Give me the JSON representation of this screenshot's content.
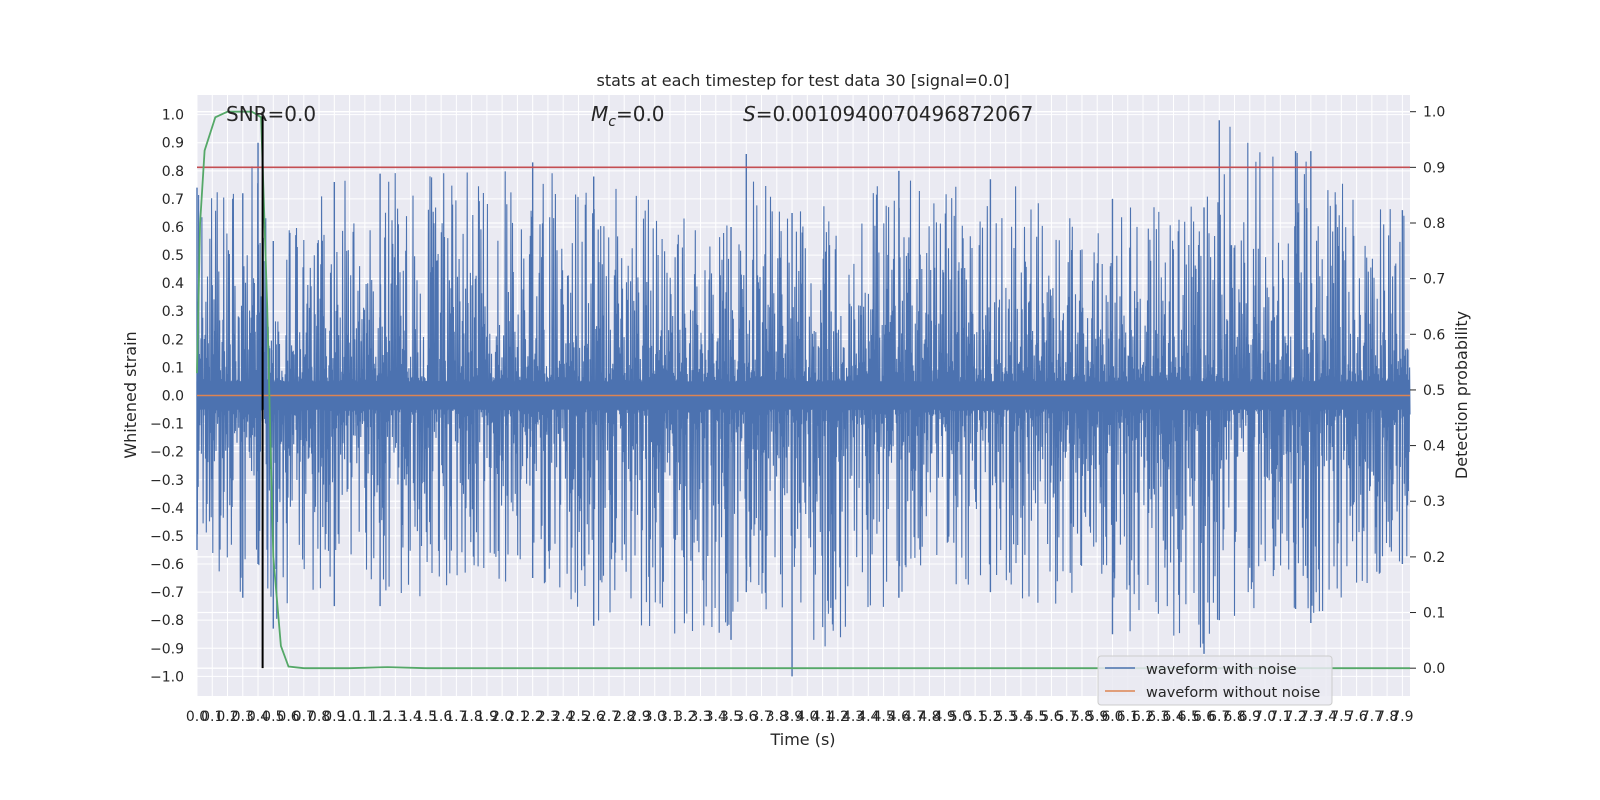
{
  "chart_data": {
    "type": "line",
    "title": "stats at each timestep for test data 30 [signal=0.0]",
    "xlabel": "Time (s)",
    "ylabel_left": "Whitened strain",
    "ylabel_right": "Detection probability",
    "xlim": [
      0,
      7.95
    ],
    "ylim_left": [
      -1.07,
      1.07
    ],
    "ylim_right": [
      -0.05,
      1.03
    ],
    "x_ticks": [
      "0.0",
      "0.1",
      "0.2",
      "0.3",
      "0.4",
      "0.5",
      "0.6",
      "0.7",
      "0.8",
      "0.9",
      "1.0",
      "1.1",
      "1.2",
      "1.3",
      "1.4",
      "1.5",
      "1.6",
      "1.7",
      "1.8",
      "1.9",
      "2.0",
      "2.1",
      "2.2",
      "2.3",
      "2.4",
      "2.5",
      "2.6",
      "2.7",
      "2.8",
      "2.9",
      "3.0",
      "3.1",
      "3.2",
      "3.3",
      "3.4",
      "3.5",
      "3.6",
      "3.7",
      "3.8",
      "3.9",
      "4.0",
      "4.1",
      "4.2",
      "4.3",
      "4.4",
      "4.5",
      "4.6",
      "4.7",
      "4.8",
      "4.9",
      "5.0",
      "5.1",
      "5.2",
      "5.3",
      "5.4",
      "5.5",
      "5.6",
      "5.7",
      "5.8",
      "5.9",
      "6.0",
      "6.1",
      "6.2",
      "6.3",
      "6.4",
      "6.5",
      "6.6",
      "6.7",
      "6.8",
      "6.9",
      "7.0",
      "7.1",
      "7.2",
      "7.3",
      "7.4",
      "7.5",
      "7.6",
      "7.7",
      "7.8",
      "7.9"
    ],
    "y_ticks_left": [
      "−1.0",
      "−0.9",
      "−0.8",
      "−0.7",
      "−0.6",
      "−0.5",
      "−0.4",
      "−0.3",
      "−0.2",
      "−0.1",
      "0.0",
      "0.1",
      "0.2",
      "0.3",
      "0.4",
      "0.5",
      "0.6",
      "0.7",
      "0.8",
      "0.9",
      "1.0"
    ],
    "y_ticks_right": [
      "0.0",
      "0.1",
      "0.2",
      "0.3",
      "0.4",
      "0.5",
      "0.6",
      "0.7",
      "0.8",
      "0.9",
      "1.0"
    ],
    "annotations": {
      "snr": "SNR=0.0",
      "mc_symbol": "M",
      "mc_sub": "c",
      "mc_value": "=0.0",
      "s_symbol": "S",
      "s_value": "=0.0010940070496872067"
    },
    "series": [
      {
        "name": "waveform with noise",
        "color": "#4c72b0",
        "axis": "left",
        "style": "dense noise, amplitude envelope",
        "envelope_x": [
          0.0,
          0.3,
          0.4,
          0.5,
          0.9,
          1.2,
          2.2,
          2.6,
          3.5,
          3.6,
          3.9,
          4.6,
          5.2,
          6.0,
          6.6,
          6.7,
          7.2,
          7.3,
          7.9
        ],
        "envelope_max": [
          0.74,
          0.72,
          0.9,
          0.55,
          0.76,
          0.79,
          0.83,
          0.78,
          0.6,
          0.86,
          0.65,
          0.8,
          0.77,
          0.7,
          0.67,
          0.98,
          0.87,
          0.87,
          0.66
        ],
        "envelope_min": [
          -0.55,
          -0.72,
          -0.6,
          -0.83,
          -0.75,
          -0.75,
          -0.65,
          -0.82,
          -0.87,
          -0.7,
          -1.0,
          -0.72,
          -0.7,
          -0.85,
          -0.92,
          -0.8,
          -0.76,
          -0.81,
          -0.6
        ]
      },
      {
        "name": "waveform without noise",
        "color": "#dd8452",
        "axis": "left",
        "x": [
          0.0,
          7.95
        ],
        "y": [
          0.0,
          0.0
        ]
      },
      {
        "name": "detection probability",
        "color": "#55a868",
        "axis": "right",
        "x": [
          0.0,
          0.02,
          0.05,
          0.12,
          0.2,
          0.3,
          0.36,
          0.42,
          0.46,
          0.5,
          0.55,
          0.6,
          0.7,
          1.0,
          1.25,
          1.5,
          2.0,
          4.0,
          6.0,
          7.95
        ],
        "y": [
          0.53,
          0.8,
          0.93,
          0.99,
          1.0,
          1.0,
          1.0,
          0.99,
          0.65,
          0.2,
          0.04,
          0.003,
          0.0,
          0.0,
          0.002,
          0.0,
          0.0,
          0.0,
          0.0,
          0.0
        ]
      }
    ],
    "threshold": {
      "value": 0.9,
      "axis": "right",
      "color": "#c44e52"
    },
    "vertical_marker": {
      "x": 0.43,
      "color": "#000000"
    },
    "legend": {
      "position": "lower-right",
      "entries": [
        {
          "label": "waveform with noise",
          "color": "#4c72b0"
        },
        {
          "label": "waveform without noise",
          "color": "#dd8452"
        }
      ]
    },
    "grid": true,
    "background": "#eaeaf2"
  }
}
